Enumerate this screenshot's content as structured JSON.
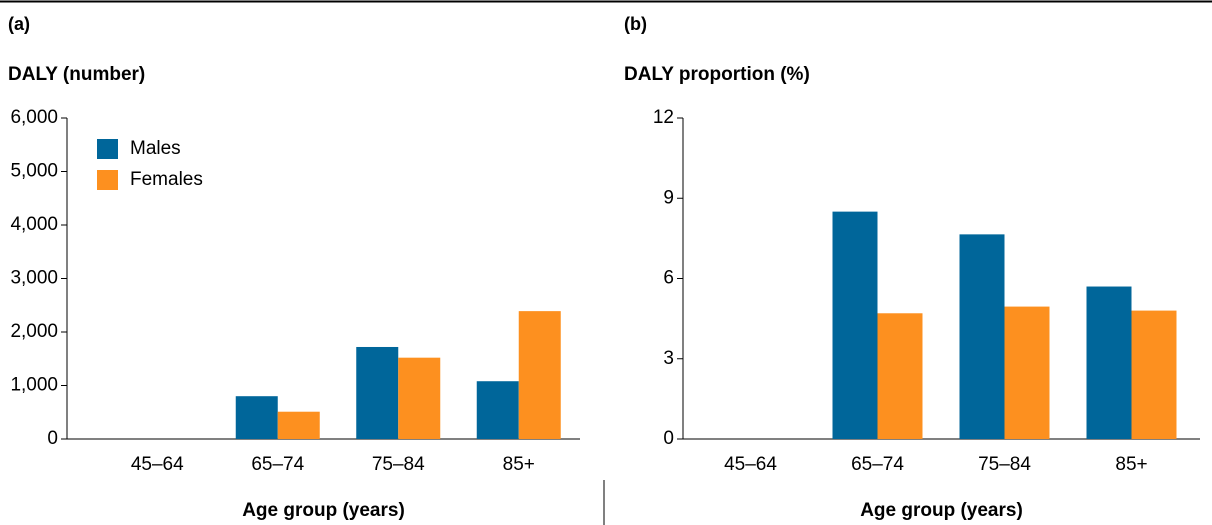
{
  "chart_data": [
    {
      "type": "bar",
      "panel": "(a)",
      "y_label": "DALY (number)",
      "x_label": "Age group (years)",
      "categories": [
        "45–64",
        "65–74",
        "75–84",
        "85+"
      ],
      "series": [
        {
          "name": "Males",
          "color": "#00669a",
          "values": [
            0,
            800,
            1720,
            1080
          ]
        },
        {
          "name": "Females",
          "color": "#fd901f",
          "values": [
            0,
            510,
            1520,
            2390
          ]
        }
      ],
      "ylim": [
        0,
        6000
      ],
      "yticks": [
        0,
        {
          "value": 1000,
          "label": "1,000"
        },
        {
          "value": 2000,
          "label": "2,000"
        },
        {
          "value": 3000,
          "label": "3,000"
        },
        {
          "value": 4000,
          "label": "4,000"
        },
        {
          "value": 5000,
          "label": "5,000"
        },
        {
          "value": 6000,
          "label": "6,000"
        }
      ],
      "legend": "top-left"
    },
    {
      "type": "bar",
      "panel": "(b)",
      "y_label": "DALY proportion (%)",
      "x_label": "Age group (years)",
      "categories": [
        "45–64",
        "65–74",
        "75–84",
        "85+"
      ],
      "series": [
        {
          "color": "#00669a",
          "values": [
            0,
            8.5,
            7.65,
            5.7
          ]
        },
        {
          "color": "#fd901f",
          "values": [
            0,
            4.7,
            4.95,
            4.8
          ]
        }
      ],
      "ylim": [
        0,
        12
      ],
      "yticks": [
        0,
        3,
        6,
        9,
        12
      ]
    }
  ]
}
